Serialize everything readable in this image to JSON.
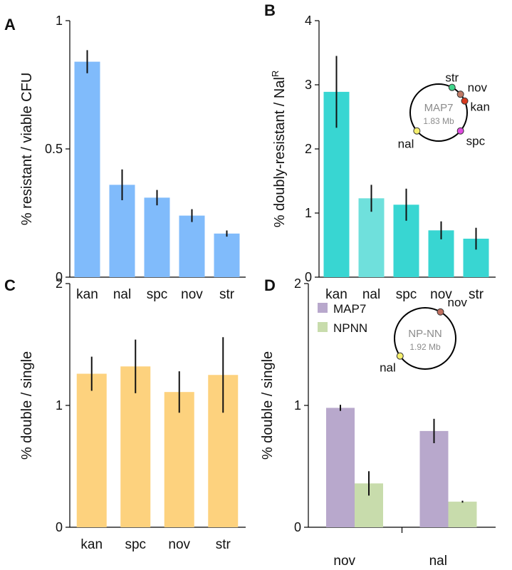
{
  "chart_data": [
    {
      "panel": "A",
      "type": "bar",
      "ylabel": "% resistant / viable CFU",
      "ylim": [
        0,
        1
      ],
      "yticks": [
        0,
        0.5,
        1
      ],
      "ytick_labels": [
        "0",
        "0.5",
        "1"
      ],
      "categories": [
        "kan",
        "nal",
        "spc",
        "nov",
        "str"
      ],
      "values": [
        0.84,
        0.36,
        0.31,
        0.24,
        0.17
      ],
      "errors": [
        0.045,
        0.06,
        0.03,
        0.025,
        0.012
      ],
      "colors": [
        "#80bbfb",
        "#80bbfb",
        "#80bbfb",
        "#80bbfb",
        "#80bbfb"
      ]
    },
    {
      "panel": "B",
      "type": "bar",
      "ylabel": "% doubly-resistant / Nal",
      "ylabel_sup": "R",
      "ylim": [
        0,
        4
      ],
      "yticks": [
        0,
        1,
        2,
        3,
        4
      ],
      "ytick_labels": [
        "0",
        "1",
        "2",
        "3",
        "4"
      ],
      "categories": [
        "kan",
        "nal",
        "spc",
        "nov",
        "str"
      ],
      "values": [
        2.89,
        1.23,
        1.13,
        0.73,
        0.6
      ],
      "errors": [
        0.56,
        0.21,
        0.25,
        0.14,
        0.17
      ],
      "colors": [
        "#38d6d2",
        "#6fe0dc",
        "#38d6d2",
        "#38d6d2",
        "#38d6d2"
      ],
      "inset": {
        "name": "MAP7",
        "size": "1.83 Mb",
        "markers": [
          {
            "label": "str",
            "angle": 62,
            "color": "#3fd68b"
          },
          {
            "label": "nov",
            "angle": 40,
            "color": "#c07a66"
          },
          {
            "label": "kan",
            "angle": 24,
            "color": "#d83a1e"
          },
          {
            "label": "spc",
            "angle": -40,
            "color": "#e04be0"
          },
          {
            "label": "nal",
            "angle": 220,
            "color": "#f5ef6e"
          }
        ]
      }
    },
    {
      "panel": "C",
      "type": "bar",
      "ylabel": "% double / single",
      "ylim": [
        0,
        2
      ],
      "yticks": [
        0,
        1,
        2
      ],
      "ytick_labels": [
        "0",
        "1",
        "2"
      ],
      "categories": [
        "kan",
        "spc",
        "nov",
        "str"
      ],
      "values": [
        1.26,
        1.32,
        1.11,
        1.25
      ],
      "errors": [
        0.14,
        0.22,
        0.17,
        0.31
      ],
      "colors": [
        "#fdd27e",
        "#fdd27e",
        "#fdd27e",
        "#fdd27e"
      ]
    },
    {
      "panel": "D",
      "type": "bar",
      "ylabel": "% double / single",
      "ylim": [
        0,
        2
      ],
      "yticks": [
        0,
        1,
        2
      ],
      "ytick_labels": [
        "0",
        "1",
        "2"
      ],
      "categories": [
        "nov",
        "nal"
      ],
      "series": [
        {
          "name": "MAP7",
          "values": [
            0.98,
            0.79
          ],
          "errors": [
            0.025,
            0.1
          ],
          "color": "#b8a8cc"
        },
        {
          "name": "NPNN",
          "values": [
            0.36,
            0.21
          ],
          "errors": [
            0.1,
            0.008
          ],
          "color": "#c8dcac"
        }
      ],
      "legend": "top-left",
      "inset": {
        "name": "NP-NN",
        "size": "1.92 Mb",
        "markers": [
          {
            "label": "nov",
            "angle": 60,
            "color": "#c07060"
          },
          {
            "label": "nal",
            "angle": 215,
            "color": "#f5ef6e"
          }
        ]
      }
    }
  ]
}
